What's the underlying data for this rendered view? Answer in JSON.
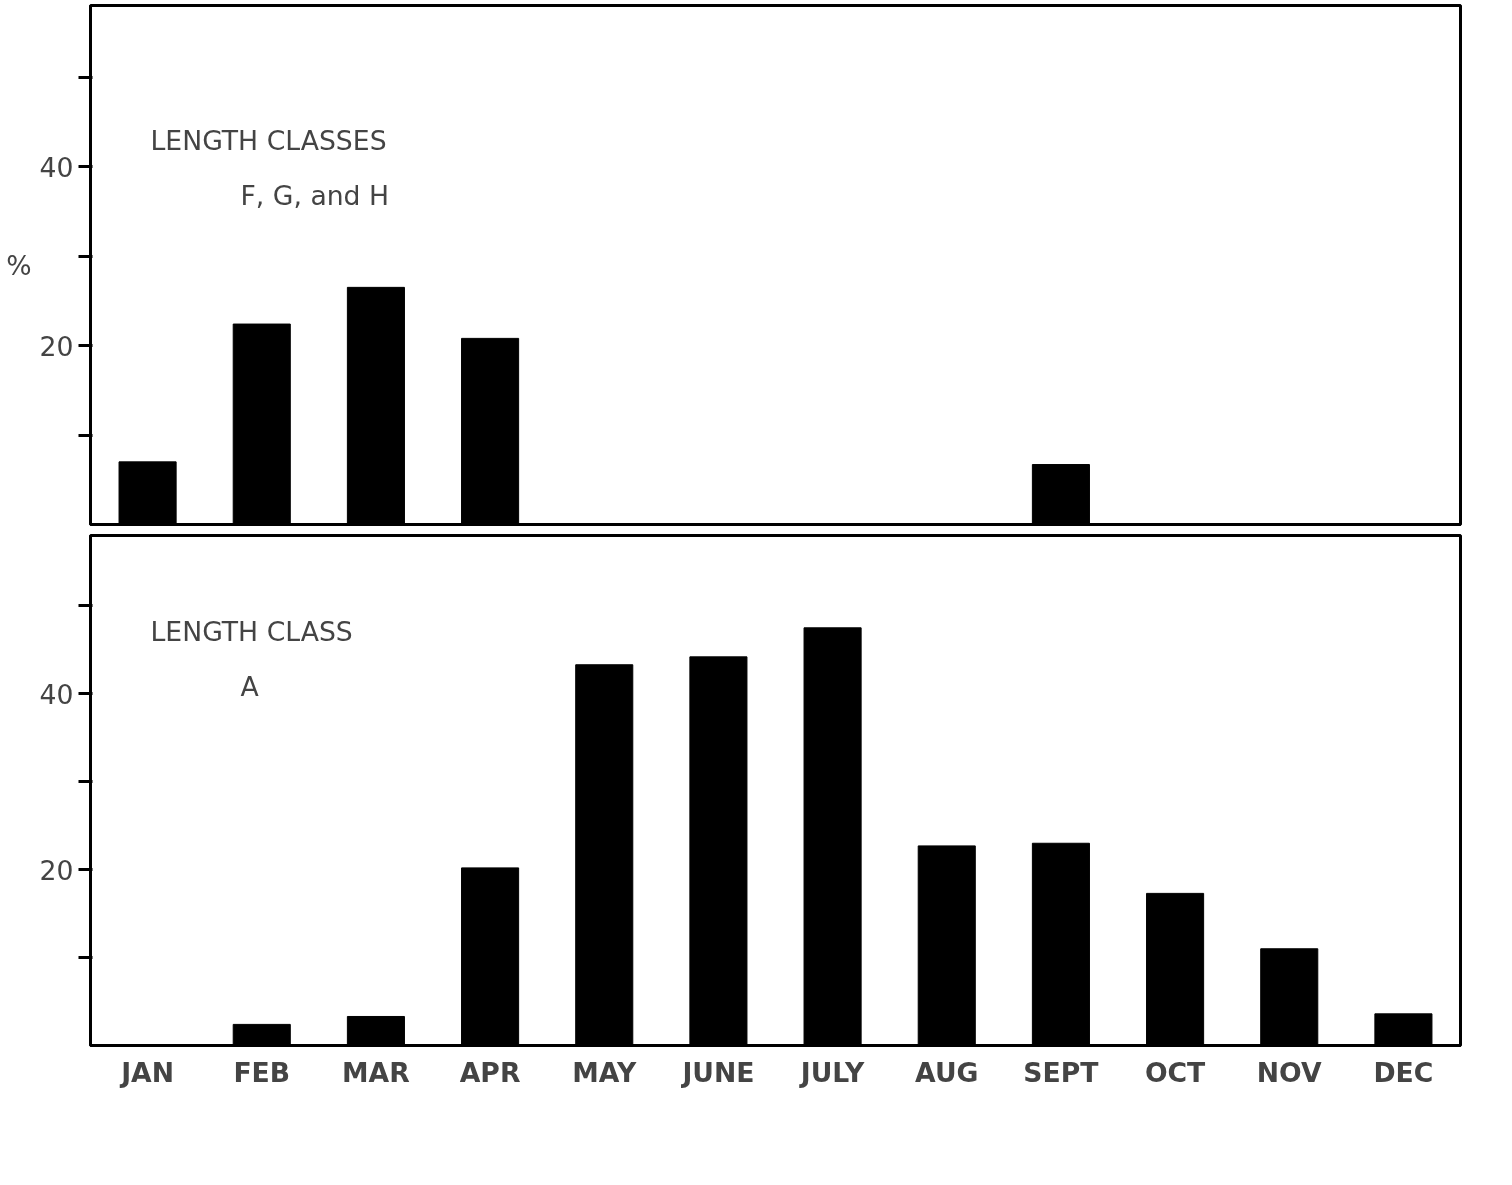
{
  "chart_data": [
    {
      "type": "bar",
      "title": "LENGTH CLASSES\nF, G, and H",
      "ylabel": "%",
      "categories": [
        null,
        null,
        null,
        null,
        null,
        null,
        null,
        null,
        null,
        null,
        null,
        null
      ],
      "values": [
        7,
        22.4,
        26.5,
        20.8,
        0,
        0,
        0,
        0,
        6.7,
        0,
        0,
        0
      ],
      "color": "#000000",
      "ylim": [
        0,
        58
      ],
      "yticks": [
        {
          "value": 10,
          "label": null
        },
        20,
        {
          "value": 30,
          "label": null
        },
        40,
        {
          "value": 50,
          "label": null
        }
      ],
      "tick_labels": "y",
      "grid": false
    },
    {
      "type": "bar",
      "title": "LENGTH CLASS\nA",
      "categories": [
        "JAN",
        "FEB",
        "MAR",
        "APR",
        "MAY",
        "JUNE",
        "JULY",
        "AUG",
        "SEPT",
        "OCT",
        "NOV",
        "DEC"
      ],
      "values": [
        0,
        2.4,
        3.3,
        20.2,
        43.3,
        44.2,
        47.5,
        22.7,
        23,
        17.3,
        11,
        3.6
      ],
      "color": "#000000",
      "ylim": [
        0,
        58
      ],
      "yticks": [
        {
          "value": 10,
          "label": null
        },
        20,
        {
          "value": 30,
          "label": null
        },
        40,
        {
          "value": 50,
          "label": null
        }
      ],
      "grid": false
    }
  ]
}
